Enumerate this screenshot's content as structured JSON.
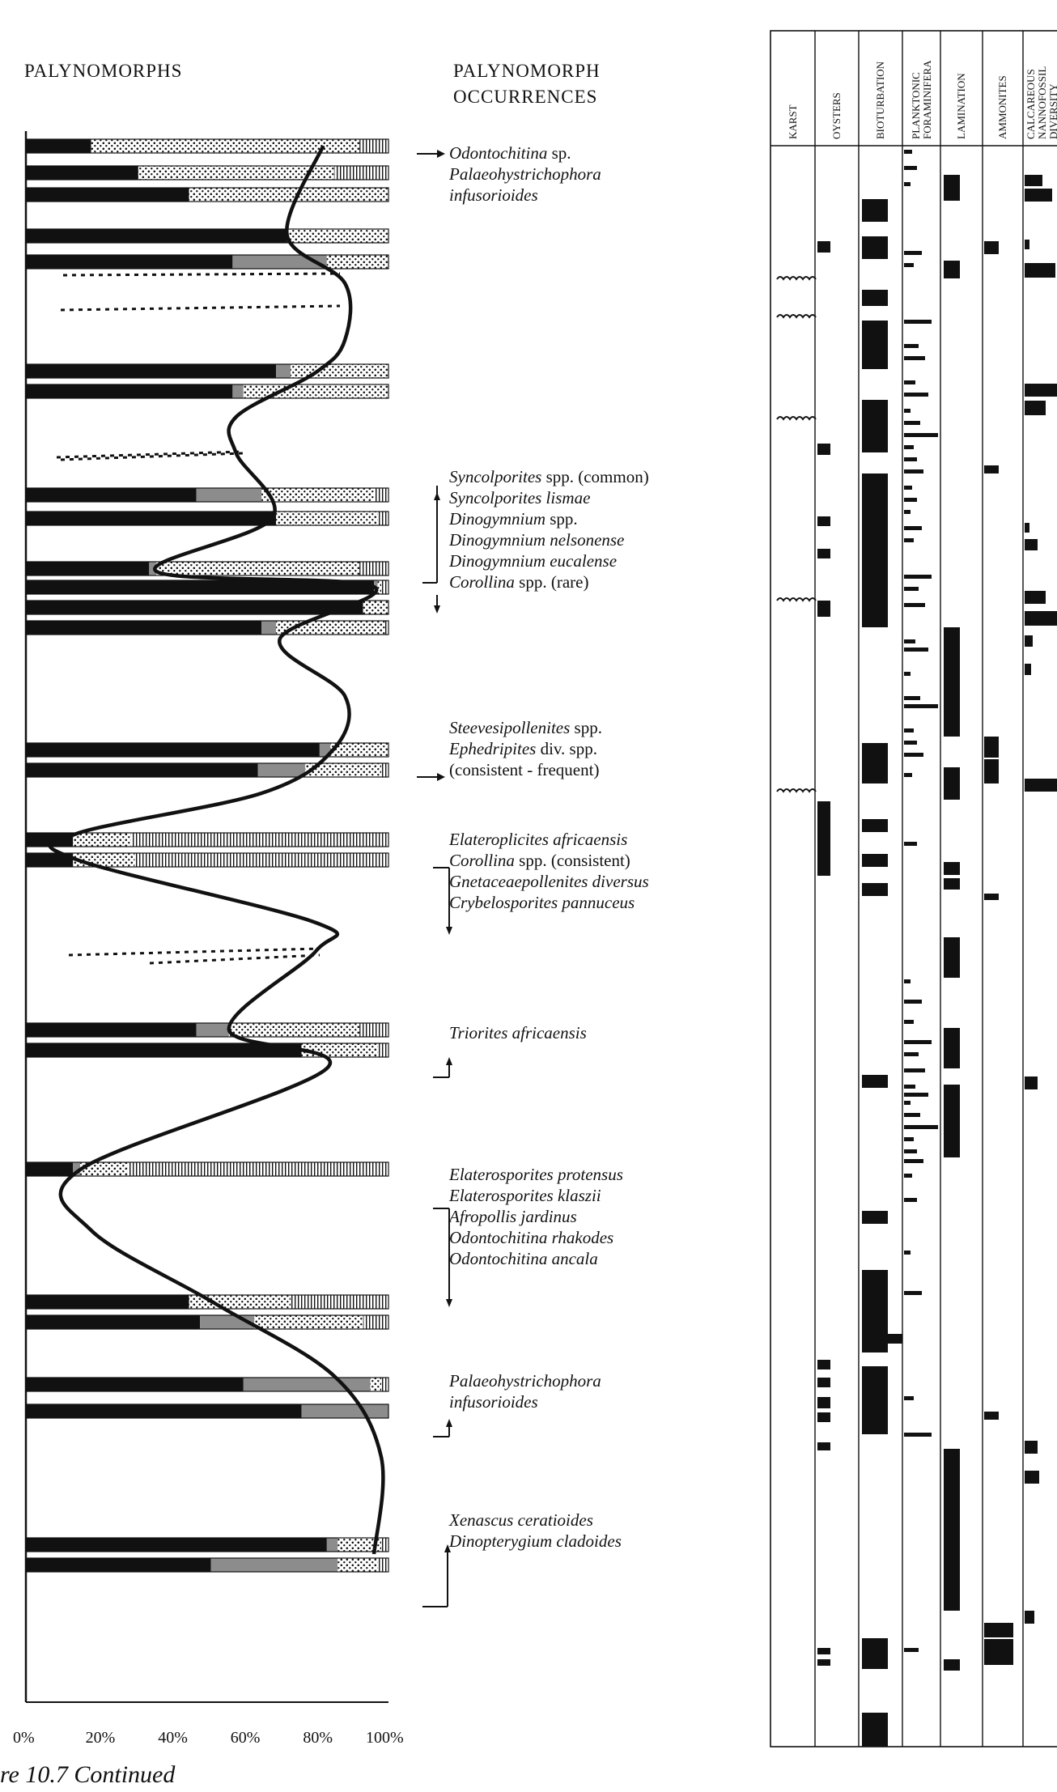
{
  "headers": {
    "palynomorphs": "PALYNOMORPHS",
    "occurrences_line1": "PALYNOMORPH",
    "occurrences_line2": "OCCURRENCES"
  },
  "x_ticks": [
    "0%",
    "20%",
    "40%",
    "60%",
    "80%",
    "100%"
  ],
  "occurrence_groups": [
    {
      "lines": [
        {
          "italic": "Odontochitina",
          "plain": " sp."
        },
        {
          "italic": "Palaeohystrichophora",
          "plain": ""
        },
        {
          "italic": "infusorioides",
          "plain": ""
        }
      ]
    },
    {
      "lines": [
        {
          "italic": "Syncolporites",
          "plain": " spp. (common)"
        },
        {
          "italic": "Syncolporites lismae",
          "plain": ""
        },
        {
          "italic": "Dinogymnium",
          "plain": " spp."
        },
        {
          "italic": "Dinogymnium nelsonense",
          "plain": ""
        },
        {
          "italic": "Dinogymnium eucalense",
          "plain": ""
        },
        {
          "italic": "Corollina",
          "plain": " spp. (rare)"
        }
      ]
    },
    {
      "lines": [
        {
          "italic": "Steevesipollenites",
          "plain": " spp."
        },
        {
          "italic": "Ephedripites",
          "plain": " div. spp."
        },
        {
          "italic": "",
          "plain": "(consistent - frequent)"
        }
      ]
    },
    {
      "lines": [
        {
          "italic": "Elateroplicites africaensis",
          "plain": ""
        },
        {
          "italic": "Corollina",
          "plain": " spp. (consistent)"
        },
        {
          "italic": "Gnetaceaepollenites diversus",
          "plain": ""
        },
        {
          "italic": "Crybelosporites pannuceus",
          "plain": ""
        }
      ]
    },
    {
      "lines": [
        {
          "italic": "Triorites africaensis",
          "plain": ""
        }
      ]
    },
    {
      "lines": [
        {
          "italic": "Elaterosporites protensus",
          "plain": ""
        },
        {
          "italic": "Elaterosporites klaszii",
          "plain": ""
        },
        {
          "italic": "Afropollis jardinus",
          "plain": ""
        },
        {
          "italic": "Odontochitina rhakodes",
          "plain": ""
        },
        {
          "italic": "Odontochitina ancala",
          "plain": ""
        }
      ]
    },
    {
      "lines": [
        {
          "italic": "Palaeohystrichophora",
          "plain": ""
        },
        {
          "italic": "infusorioides",
          "plain": ""
        }
      ]
    },
    {
      "lines": [
        {
          "italic": "Xenascus ceratioides",
          "plain": ""
        },
        {
          "italic": "Dinopterygium cladoides",
          "plain": ""
        }
      ]
    }
  ],
  "column_headers": [
    {
      "name": "karst",
      "label": "KARST"
    },
    {
      "name": "oysters",
      "label": "OYSTERS"
    },
    {
      "name": "bioturbation",
      "label": "BIOTURBATION"
    },
    {
      "name": "planktonic-foraminifera",
      "label": "PLANKTONIC\nFORAMINIFERA"
    },
    {
      "name": "lamination",
      "label": "LAMINATION"
    },
    {
      "name": "ammonites",
      "label": "AMMONITES"
    },
    {
      "name": "calcareous-nannofossil-diversity",
      "label": "CALCAREOUS\nNANNOFOSSIL\nDIVERSITY"
    }
  ],
  "caption": "re 10.7  Continued",
  "colors": {
    "ink": "#111111",
    "grey": "#8c8c8c",
    "paper": "#ffffff"
  },
  "chart_data": {
    "type": "bar",
    "orientation": "horizontal stacked",
    "xlim": [
      0,
      100
    ],
    "components_left_to_right": [
      "black",
      "grey",
      "stippled",
      "striped"
    ],
    "samples": [
      {
        "values": [
          18,
          0,
          74,
          8
        ]
      },
      {
        "values": [
          31,
          0,
          54,
          15
        ]
      },
      {
        "values": [
          45,
          0,
          55,
          0
        ]
      },
      {
        "values": [
          72,
          0,
          28,
          0
        ]
      },
      {
        "values": [
          57,
          26,
          17,
          0
        ]
      },
      {
        "values": [
          69,
          4,
          27,
          0
        ]
      },
      {
        "values": [
          57,
          3,
          40,
          0
        ]
      },
      {
        "values": [
          47,
          18,
          31,
          4
        ]
      },
      {
        "values": [
          69,
          0,
          28,
          3
        ]
      },
      {
        "values": [
          34,
          2,
          56,
          8
        ]
      },
      {
        "values": [
          96,
          1,
          1,
          2
        ]
      },
      {
        "values": [
          93,
          0,
          7,
          0
        ]
      },
      {
        "values": [
          65,
          4,
          30,
          1
        ]
      },
      {
        "values": [
          81,
          3,
          16,
          0
        ]
      },
      {
        "values": [
          64,
          13,
          21,
          2
        ]
      },
      {
        "values": [
          13,
          0,
          16,
          71
        ]
      },
      {
        "values": [
          13,
          0,
          17,
          70
        ]
      },
      {
        "values": [
          47,
          9,
          36,
          8
        ]
      },
      {
        "values": [
          76,
          0,
          21,
          3
        ]
      },
      {
        "values": [
          13,
          2,
          13,
          72
        ]
      },
      {
        "values": [
          45,
          0,
          28,
          27
        ]
      },
      {
        "values": [
          48,
          15,
          30,
          7
        ]
      },
      {
        "values": [
          60,
          35,
          3,
          2
        ]
      },
      {
        "values": [
          76,
          24,
          0,
          0
        ]
      },
      {
        "values": [
          83,
          3,
          12,
          2
        ]
      },
      {
        "values": [
          51,
          35,
          11,
          3
        ]
      }
    ],
    "trend_curve_pct": [
      82,
      72,
      88,
      88,
      80,
      58,
      58,
      68,
      36,
      96,
      70,
      88,
      85,
      65,
      14,
      14,
      80,
      80,
      56,
      83,
      15,
      18,
      52,
      85,
      98,
      96
    ]
  }
}
